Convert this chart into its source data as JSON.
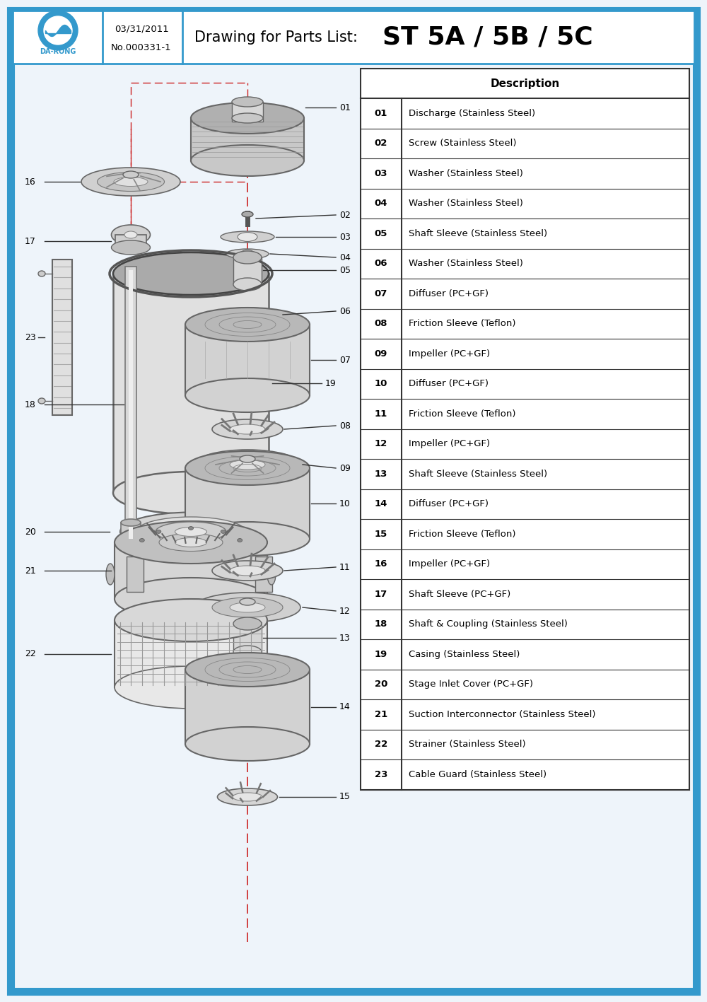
{
  "title_date": "03/31/2011",
  "title_no": "No.000331-1",
  "title_drawing": "Drawing for Parts List:",
  "title_model": "ST 5A / 5B / 5C",
  "border_color": "#3399cc",
  "bg_color": "#eef4fa",
  "parts": [
    {
      "num": "01",
      "desc": "Discharge (Stainless Steel)"
    },
    {
      "num": "02",
      "desc": "Screw (Stainless Steel)"
    },
    {
      "num": "03",
      "desc": "Washer (Stainless Steel)"
    },
    {
      "num": "04",
      "desc": "Washer (Stainless Steel)"
    },
    {
      "num": "05",
      "desc": "Shaft Sleeve (Stainless Steel)"
    },
    {
      "num": "06",
      "desc": "Washer (Stainless Steel)"
    },
    {
      "num": "07",
      "desc": "Diffuser (PC+GF)"
    },
    {
      "num": "08",
      "desc": "Friction Sleeve (Teflon)"
    },
    {
      "num": "09",
      "desc": "Impeller (PC+GF)"
    },
    {
      "num": "10",
      "desc": "Diffuser (PC+GF)"
    },
    {
      "num": "11",
      "desc": "Friction Sleeve (Teflon)"
    },
    {
      "num": "12",
      "desc": "Impeller (PC+GF)"
    },
    {
      "num": "13",
      "desc": "Shaft Sleeve (Stainless Steel)"
    },
    {
      "num": "14",
      "desc": "Diffuser (PC+GF)"
    },
    {
      "num": "15",
      "desc": "Friction Sleeve (Teflon)"
    },
    {
      "num": "16",
      "desc": "Impeller (PC+GF)"
    },
    {
      "num": "17",
      "desc": "Shaft Sleeve (PC+GF)"
    },
    {
      "num": "18",
      "desc": "Shaft & Coupling (Stainless Steel)"
    },
    {
      "num": "19",
      "desc": "Casing (Stainless Steel)"
    },
    {
      "num": "20",
      "desc": "Stage Inlet Cover (PC+GF)"
    },
    {
      "num": "21",
      "desc": "Suction Interconnector (Stainless Steel)"
    },
    {
      "num": "22",
      "desc": "Strainer (Stainless Steel)"
    },
    {
      "num": "23",
      "desc": "Cable Guard (Stainless Steel)"
    }
  ],
  "red_line_color": "#cc2222",
  "gray": "#888888",
  "light_gray": "#cccccc",
  "dark_gray": "#555555"
}
